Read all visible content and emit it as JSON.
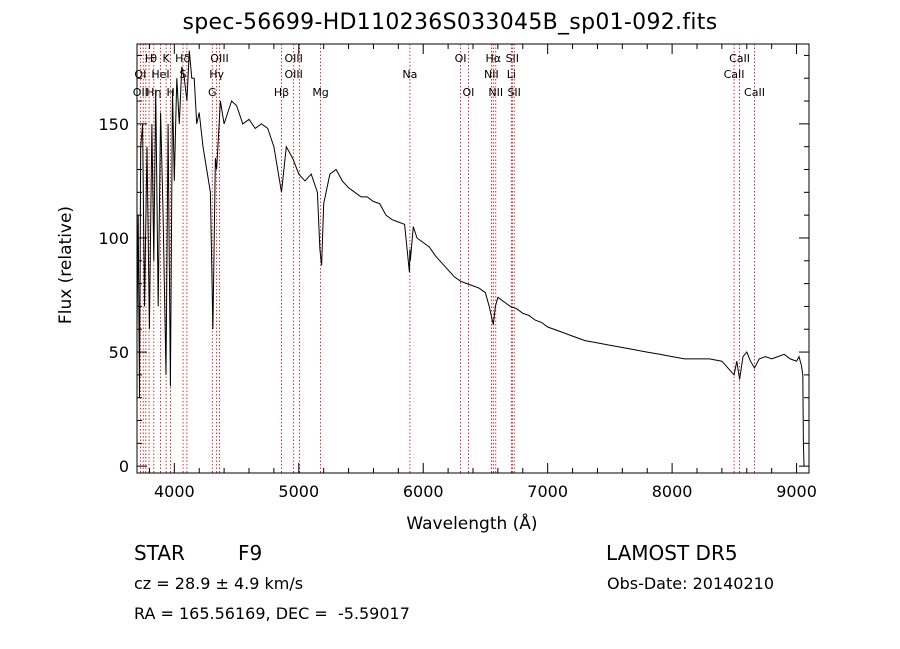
{
  "title": "spec-56699-HD110236S033045B_sp01-092.fits",
  "info": {
    "class_label": "STAR",
    "subclass": "F9",
    "survey": "LAMOST DR5",
    "redshift_line": "cz = 28.9 ± 4.9 km/s",
    "obs_date": "Obs-Date: 20140210",
    "coords": "RA = 165.56169, DEC =  -5.59017"
  },
  "chart_data": {
    "type": "line",
    "title": "spec-56699-HD110236S033045B_sp01-092.fits",
    "xlabel": "Wavelength (Å)",
    "ylabel": "Flux (relative)",
    "xlim": [
      3700,
      9100
    ],
    "ylim": [
      -3,
      185
    ],
    "x_ticks": [
      4000,
      5000,
      6000,
      7000,
      8000,
      9000
    ],
    "y_ticks": [
      0,
      50,
      100,
      150
    ],
    "series": [
      {
        "color": "#000000",
        "x": [
          3700,
          3710,
          3720,
          3730,
          3745,
          3760,
          3780,
          3800,
          3820,
          3835,
          3850,
          3870,
          3890,
          3910,
          3933,
          3950,
          3968,
          3985,
          4000,
          4020,
          4040,
          4060,
          4080,
          4101,
          4120,
          4140,
          4160,
          4180,
          4200,
          4230,
          4260,
          4290,
          4310,
          4330,
          4340,
          4350,
          4370,
          4400,
          4430,
          4460,
          4500,
          4550,
          4600,
          4650,
          4700,
          4750,
          4800,
          4861,
          4900,
          4950,
          5000,
          5050,
          5100,
          5150,
          5170,
          5183,
          5200,
          5250,
          5300,
          5350,
          5400,
          5450,
          5500,
          5550,
          5600,
          5650,
          5700,
          5750,
          5800,
          5850,
          5889,
          5893,
          5896,
          5920,
          5950,
          6000,
          6050,
          6100,
          6150,
          6200,
          6250,
          6300,
          6350,
          6400,
          6450,
          6500,
          6530,
          6563,
          6580,
          6600,
          6650,
          6700,
          6750,
          6800,
          6850,
          6900,
          6950,
          7000,
          7100,
          7200,
          7300,
          7400,
          7500,
          7600,
          7700,
          7800,
          7900,
          8000,
          8100,
          8200,
          8300,
          8400,
          8498,
          8520,
          8542,
          8570,
          8600,
          8630,
          8662,
          8700,
          8750,
          8800,
          8850,
          8900,
          8950,
          9000,
          9020,
          9040,
          9050,
          9055,
          9060
        ],
        "y": [
          60,
          110,
          30,
          140,
          150,
          70,
          140,
          60,
          150,
          90,
          165,
          70,
          155,
          110,
          40,
          150,
          35,
          165,
          125,
          170,
          150,
          175,
          170,
          160,
          182,
          170,
          170,
          150,
          155,
          140,
          130,
          120,
          60,
          135,
          130,
          140,
          160,
          150,
          155,
          160,
          158,
          150,
          152,
          148,
          150,
          148,
          140,
          120,
          140,
          135,
          128,
          125,
          128,
          120,
          95,
          88,
          115,
          128,
          130,
          125,
          122,
          120,
          118,
          118,
          116,
          115,
          110,
          108,
          107,
          106,
          85,
          95,
          90,
          105,
          100,
          98,
          96,
          92,
          89,
          86,
          83,
          81,
          80,
          79,
          78,
          76,
          70,
          62,
          70,
          74,
          72,
          70,
          69,
          67,
          66,
          64,
          63,
          61,
          59,
          57,
          55,
          54,
          53,
          52,
          51,
          50,
          49,
          48,
          47,
          47,
          47,
          46,
          40,
          46,
          38,
          48,
          50,
          46,
          43,
          47,
          48,
          47,
          48,
          49,
          47,
          46,
          48,
          44,
          40,
          10,
          0
        ]
      }
    ],
    "lines_top": [
      {
        "label": "H",
        "x": 3797
      },
      {
        "label": "θ",
        "x": 3835
      },
      {
        "label": "K",
        "x": 3934
      },
      {
        "label": "H",
        "x": 4040
      },
      {
        "label": "δ",
        "x": 4101
      },
      {
        "label": "OIII",
        "x": 4363
      },
      {
        "label": "OIII",
        "x": 4959
      },
      {
        "label": "OI",
        "x": 6300
      },
      {
        "label": "Hα",
        "x": 6563
      },
      {
        "label": "SII",
        "x": 6716
      },
      {
        "label": "CaII",
        "x": 8542
      }
    ],
    "lines_mid": [
      {
        "label": "OI",
        "x": 3727
      },
      {
        "label": "HeI",
        "x": 3889
      },
      {
        "label": "S",
        "x": 4070
      },
      {
        "label": "Hγ",
        "x": 4340
      },
      {
        "label": "OIII",
        "x": 4959
      },
      {
        "label": "Na",
        "x": 5893
      },
      {
        "label": "NII",
        "x": 6548
      },
      {
        "label": "Li",
        "x": 6708
      },
      {
        "label": "CaII",
        "x": 8498
      }
    ],
    "lines_low": [
      {
        "label": "OII",
        "x": 3727
      },
      {
        "label": "Hη",
        "x": 3835
      },
      {
        "label": "H",
        "x": 3970
      },
      {
        "label": "G",
        "x": 4305
      },
      {
        "label": "Hβ",
        "x": 4861
      },
      {
        "label": "Mg",
        "x": 5175
      },
      {
        "label": "OI",
        "x": 6363
      },
      {
        "label": "NII",
        "x": 6583
      },
      {
        "label": "SII",
        "x": 6731
      },
      {
        "label": "CaII",
        "x": 8662
      }
    ],
    "line_positions": [
      3727,
      3750,
      3771,
      3797,
      3835,
      3889,
      3934,
      3970,
      4070,
      4101,
      4305,
      4340,
      4363,
      4861,
      4959,
      5007,
      5175,
      5893,
      6300,
      6363,
      6548,
      6563,
      6583,
      6708,
      6716,
      6731,
      8498,
      8542,
      8662
    ],
    "line_color": "#cc0000"
  }
}
